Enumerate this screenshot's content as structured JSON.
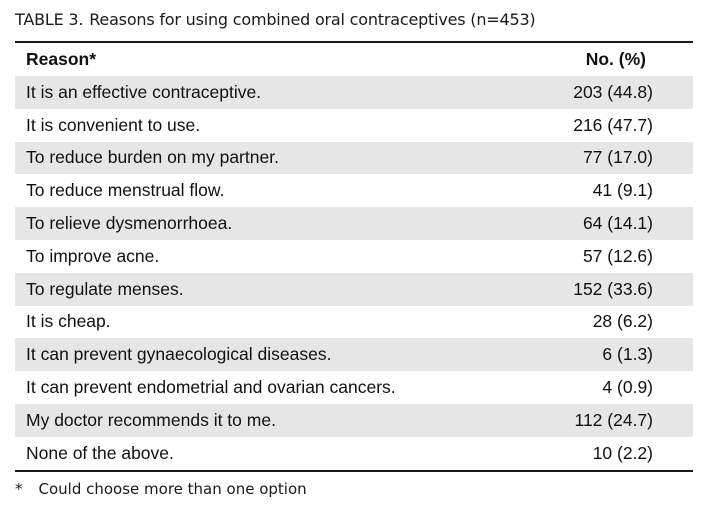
{
  "caption": {
    "label": "TABLE 3.",
    "title": "Reasons for using combined oral contraceptives (n=453)"
  },
  "table": {
    "headers": {
      "reason": "Reason*",
      "value": "No. (%)"
    },
    "rows": [
      {
        "reason": "It is an effective contraceptive.",
        "value": "203 (44.8)"
      },
      {
        "reason": "It is convenient to use.",
        "value": "216 (47.7)"
      },
      {
        "reason": "To reduce burden on my partner.",
        "value": "77 (17.0)"
      },
      {
        "reason": "To reduce menstrual flow.",
        "value": "41 (9.1)"
      },
      {
        "reason": "To relieve dysmenorrhoea.",
        "value": "64 (14.1)"
      },
      {
        "reason": "To improve acne.",
        "value": "57 (12.6)"
      },
      {
        "reason": "To regulate menses.",
        "value": "152 (33.6)"
      },
      {
        "reason": "It is cheap.",
        "value": "28 (6.2)"
      },
      {
        "reason": "It can prevent gynaecological diseases.",
        "value": "6 (1.3)"
      },
      {
        "reason": "It can prevent endometrial and ovarian cancers.",
        "value": "4 (0.9)"
      },
      {
        "reason": "My doctor recommends it to me.",
        "value": "112 (24.7)"
      },
      {
        "reason": "None of the above.",
        "value": "10 (2.2)"
      }
    ]
  },
  "footnote": {
    "mark": "*",
    "text": "Could choose more than one option"
  },
  "colors": {
    "shaded_row": "#e6e6e6",
    "rule": "#1a1a1a"
  }
}
